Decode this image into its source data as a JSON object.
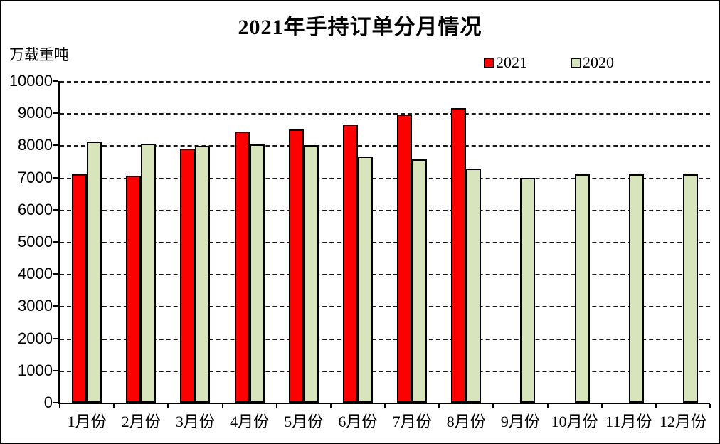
{
  "title": "2021年手持订单分月情况",
  "unit_label": "万载重吨",
  "legend": [
    {
      "label": "2021",
      "color": "#FF0000"
    },
    {
      "label": "2020",
      "color": "#D8E4BC"
    }
  ],
  "colors": {
    "series_2021": "#FF0000",
    "series_2020": "#D8E4BC",
    "axis": "#000000",
    "background": "#FFFFFF"
  },
  "chart_data": {
    "type": "bar",
    "title": "2021年手持订单分月情况",
    "ylabel": "万载重吨",
    "xlabel": "",
    "categories": [
      "1月份",
      "2月份",
      "3月份",
      "4月份",
      "5月份",
      "6月份",
      "7月份",
      "8月份",
      "9月份",
      "10月份",
      "11月份",
      "12月份"
    ],
    "series": [
      {
        "name": "2021",
        "color": "#FF0000",
        "values": [
          7110,
          7060,
          7890,
          8420,
          8500,
          8660,
          8960,
          9150,
          null,
          null,
          null,
          null
        ]
      },
      {
        "name": "2020",
        "color": "#D8E4BC",
        "values": [
          8110,
          8050,
          7980,
          8040,
          8000,
          7660,
          7560,
          7280,
          7000,
          7100,
          7100,
          7110
        ]
      }
    ],
    "ylim": [
      0,
      10000
    ],
    "ytick_step": 1000,
    "grid": "horizontal-dashed",
    "legend_position": "top-right"
  }
}
